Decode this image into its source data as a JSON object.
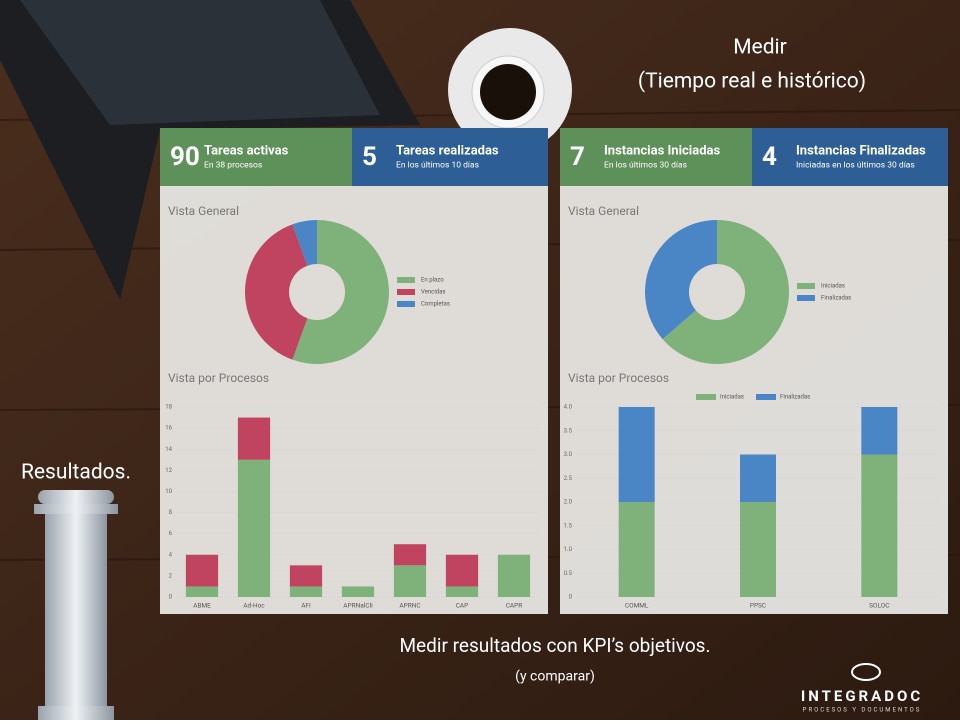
{
  "slide": {
    "heading": "Medir",
    "subheading": "(Tiempo real e histórico)",
    "side_label": "Resultados.",
    "caption": "Medir resultados con KPI’s objetivos.",
    "caption_note": "(y comparar)",
    "logo": "INTEGRADOC",
    "logo_tagline": "PROCESOS Y DOCUMENTOS"
  },
  "panels": [
    {
      "kpis": [
        {
          "number": 90,
          "title": "Tareas activas",
          "subtitle": "En 38 procesos",
          "color": "#5e9159"
        },
        {
          "number": 5,
          "title": "Tareas realizadas",
          "subtitle": "En los últimos 10 días",
          "color": "#2d5f96"
        }
      ],
      "donut": {
        "type": "pie",
        "title": "Vista General",
        "categories": [
          "En plazo",
          "Vencidas",
          "Completas"
        ],
        "values": [
          50,
          35,
          5
        ],
        "colors": [
          "#7fb27a",
          "#c0435f",
          "#4a86c5"
        ]
      },
      "bars": {
        "type": "bar",
        "title": "Vista por Procesos",
        "stacked": true,
        "categories": [
          "ABME",
          "Ad-Hoc",
          "AFI",
          "APRNalCli",
          "APRNC",
          "CAP",
          "CAPR"
        ],
        "series": [
          {
            "color": "#7fb27a",
            "values": [
              1,
              13,
              1,
              1,
              3,
              1,
              4
            ]
          },
          {
            "color": "#c0435f",
            "values": [
              3,
              4,
              2,
              0,
              2,
              3,
              0
            ]
          }
        ],
        "ylim": [
          0,
          18
        ],
        "yticks": [
          0,
          2,
          4,
          6,
          8,
          10,
          12,
          14,
          16,
          18
        ],
        "grid": true
      }
    },
    {
      "kpis": [
        {
          "number": 7,
          "title": "Instancias Iniciadas",
          "subtitle": "En los últimos 30 días",
          "color": "#5e9159"
        },
        {
          "number": 4,
          "title": "Instancias Finalizadas",
          "subtitle": "Iniciadas en los últimos 30 días",
          "color": "#2d5f96"
        }
      ],
      "donut": {
        "type": "pie",
        "title": "Vista General",
        "categories": [
          "Iniciadas",
          "Finalizadas"
        ],
        "values": [
          7,
          4
        ],
        "colors": [
          "#7fb27a",
          "#4a86c5"
        ]
      },
      "bars": {
        "type": "bar",
        "title": "Vista por Procesos",
        "stacked": true,
        "categories": [
          "COMML",
          "PPSC",
          "SOLOC"
        ],
        "series": [
          {
            "name": "Iniciadas",
            "color": "#7fb27a",
            "values": [
              2,
              2,
              3
            ]
          },
          {
            "name": "Finalizadas",
            "color": "#4a86c5",
            "values": [
              2,
              1,
              1
            ]
          }
        ],
        "ylim": [
          0,
          4
        ],
        "yticks": [
          0,
          0.5,
          {
            "value": 1,
            "label": "1.0"
          },
          1.5,
          {
            "value": 2,
            "label": "2.0"
          },
          2.5,
          {
            "value": 3,
            "label": "3.0"
          },
          3.5,
          {
            "value": 4,
            "label": "4.0"
          }
        ],
        "grid": true
      }
    }
  ]
}
